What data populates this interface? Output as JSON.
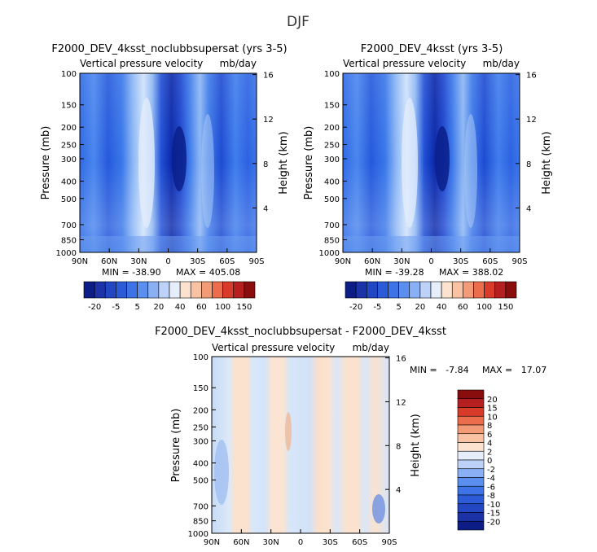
{
  "figure_title": "DJF",
  "chart_data": [
    {
      "type": "heatmap",
      "title": "F2000_DEV_4ksst_noclubbsupersat (yrs 3-5)",
      "subtitle_left": "Vertical pressure velocity",
      "subtitle_right": "mb/day",
      "ylabel": "Pressure (mb)",
      "ylabel_right": "Height (km)",
      "x_ticks": [
        "90N",
        "60N",
        "30N",
        "0",
        "30S",
        "60S",
        "90S"
      ],
      "y_ticks": [
        100,
        150,
        200,
        250,
        300,
        400,
        500,
        700,
        850,
        1000
      ],
      "y_ticks_right": [
        16,
        12,
        8,
        4
      ],
      "min_label": "MIN = -38.90",
      "max_label": "MAX = 405.08",
      "min": -38.9,
      "max": 405.08,
      "colorbar_labels": [
        "-20",
        "-5",
        "5",
        "20",
        "40",
        "60",
        "100",
        "150"
      ]
    },
    {
      "type": "heatmap",
      "title": "F2000_DEV_4ksst (yrs 3-5)",
      "subtitle_left": "Vertical pressure velocity",
      "subtitle_right": "mb/day",
      "ylabel": "Pressure (mb)",
      "ylabel_right": "Height (km)",
      "x_ticks": [
        "90N",
        "60N",
        "30N",
        "0",
        "30S",
        "60S",
        "90S"
      ],
      "y_ticks": [
        100,
        150,
        200,
        250,
        300,
        400,
        500,
        700,
        850,
        1000
      ],
      "y_ticks_right": [
        16,
        12,
        8,
        4
      ],
      "min_label": "MIN = -39.28",
      "max_label": "MAX = 388.02",
      "min": -39.28,
      "max": 388.02,
      "colorbar_labels": [
        "-20",
        "-5",
        "5",
        "20",
        "40",
        "60",
        "100",
        "150"
      ]
    },
    {
      "type": "heatmap",
      "title": "F2000_DEV_4ksst_noclubbsupersat - F2000_DEV_4ksst",
      "subtitle_left": "Vertical pressure velocity",
      "subtitle_right": "mb/day",
      "ylabel": "Pressure (mb)",
      "ylabel_right": "Height (km)",
      "x_ticks": [
        "90N",
        "60N",
        "30N",
        "0",
        "30S",
        "60S",
        "90S"
      ],
      "y_ticks": [
        100,
        150,
        200,
        250,
        300,
        400,
        500,
        700,
        850,
        1000
      ],
      "y_ticks_right": [
        16,
        12,
        8,
        4
      ],
      "min_label": "MIN =   -7.84",
      "max_label": "MAX =   17.07",
      "min": -7.84,
      "max": 17.07,
      "colorbar_labels": [
        "20",
        "15",
        "10",
        "8",
        "6",
        "4",
        "2",
        "0",
        "-2",
        "-4",
        "-6",
        "-8",
        "-10",
        "-15",
        "-20"
      ]
    }
  ]
}
